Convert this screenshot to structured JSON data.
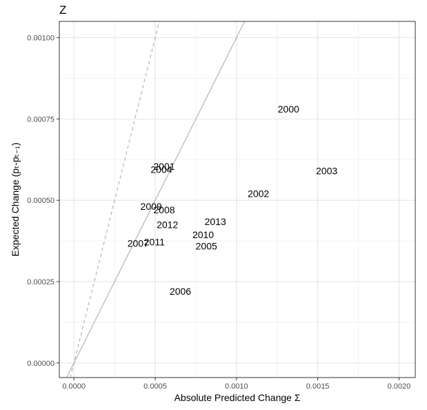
{
  "chart_data": {
    "type": "scatter",
    "title": "Z",
    "xlabel": "Absolute Predicted Change Σ",
    "ylabel": "Expected Change (pₜ-pₜ₋₁)",
    "xlim": [
      -9e-05,
      0.0021
    ],
    "ylim": [
      -4.5e-05,
      0.00105
    ],
    "x_ticks": [
      0.0,
      0.0005,
      0.001,
      0.0015,
      0.002
    ],
    "x_tick_labels": [
      "0.0000",
      "0.0005",
      "0.0010",
      "0.0015",
      "0.0020"
    ],
    "y_ticks": [
      0.0,
      0.00025,
      0.0005,
      0.00075,
      0.001
    ],
    "y_tick_labels": [
      "0.00000",
      "0.00025",
      "0.00050",
      "0.00075",
      "0.00100"
    ],
    "grid": true,
    "points": [
      {
        "label": "2000",
        "x": 0.00132,
        "y": 0.000778
      },
      {
        "label": "2001",
        "x": 0.000555,
        "y": 0.000602
      },
      {
        "label": "2002",
        "x": 0.001135,
        "y": 0.000518
      },
      {
        "label": "2003",
        "x": 0.001555,
        "y": 0.000588
      },
      {
        "label": "2004",
        "x": 0.000538,
        "y": 0.000592
      },
      {
        "label": "2005",
        "x": 0.000815,
        "y": 0.000357
      },
      {
        "label": "2006",
        "x": 0.000655,
        "y": 0.000218
      },
      {
        "label": "2007",
        "x": 0.000395,
        "y": 0.000365
      },
      {
        "label": "2008",
        "x": 0.000555,
        "y": 0.000468
      },
      {
        "label": "2009",
        "x": 0.000475,
        "y": 0.000478
      },
      {
        "label": "2010",
        "x": 0.000795,
        "y": 0.000392
      },
      {
        "label": "2011",
        "x": 0.000495,
        "y": 0.000369
      },
      {
        "label": "2012",
        "x": 0.000575,
        "y": 0.000422
      },
      {
        "label": "2013",
        "x": 0.00087,
        "y": 0.000432
      }
    ],
    "reference_lines": [
      {
        "slope": 1,
        "intercept": 0,
        "style": "solid",
        "color": "#b3b3b3"
      },
      {
        "slope": 2,
        "intercept": 0,
        "style": "dashed",
        "color": "#b3b3b3"
      }
    ]
  }
}
